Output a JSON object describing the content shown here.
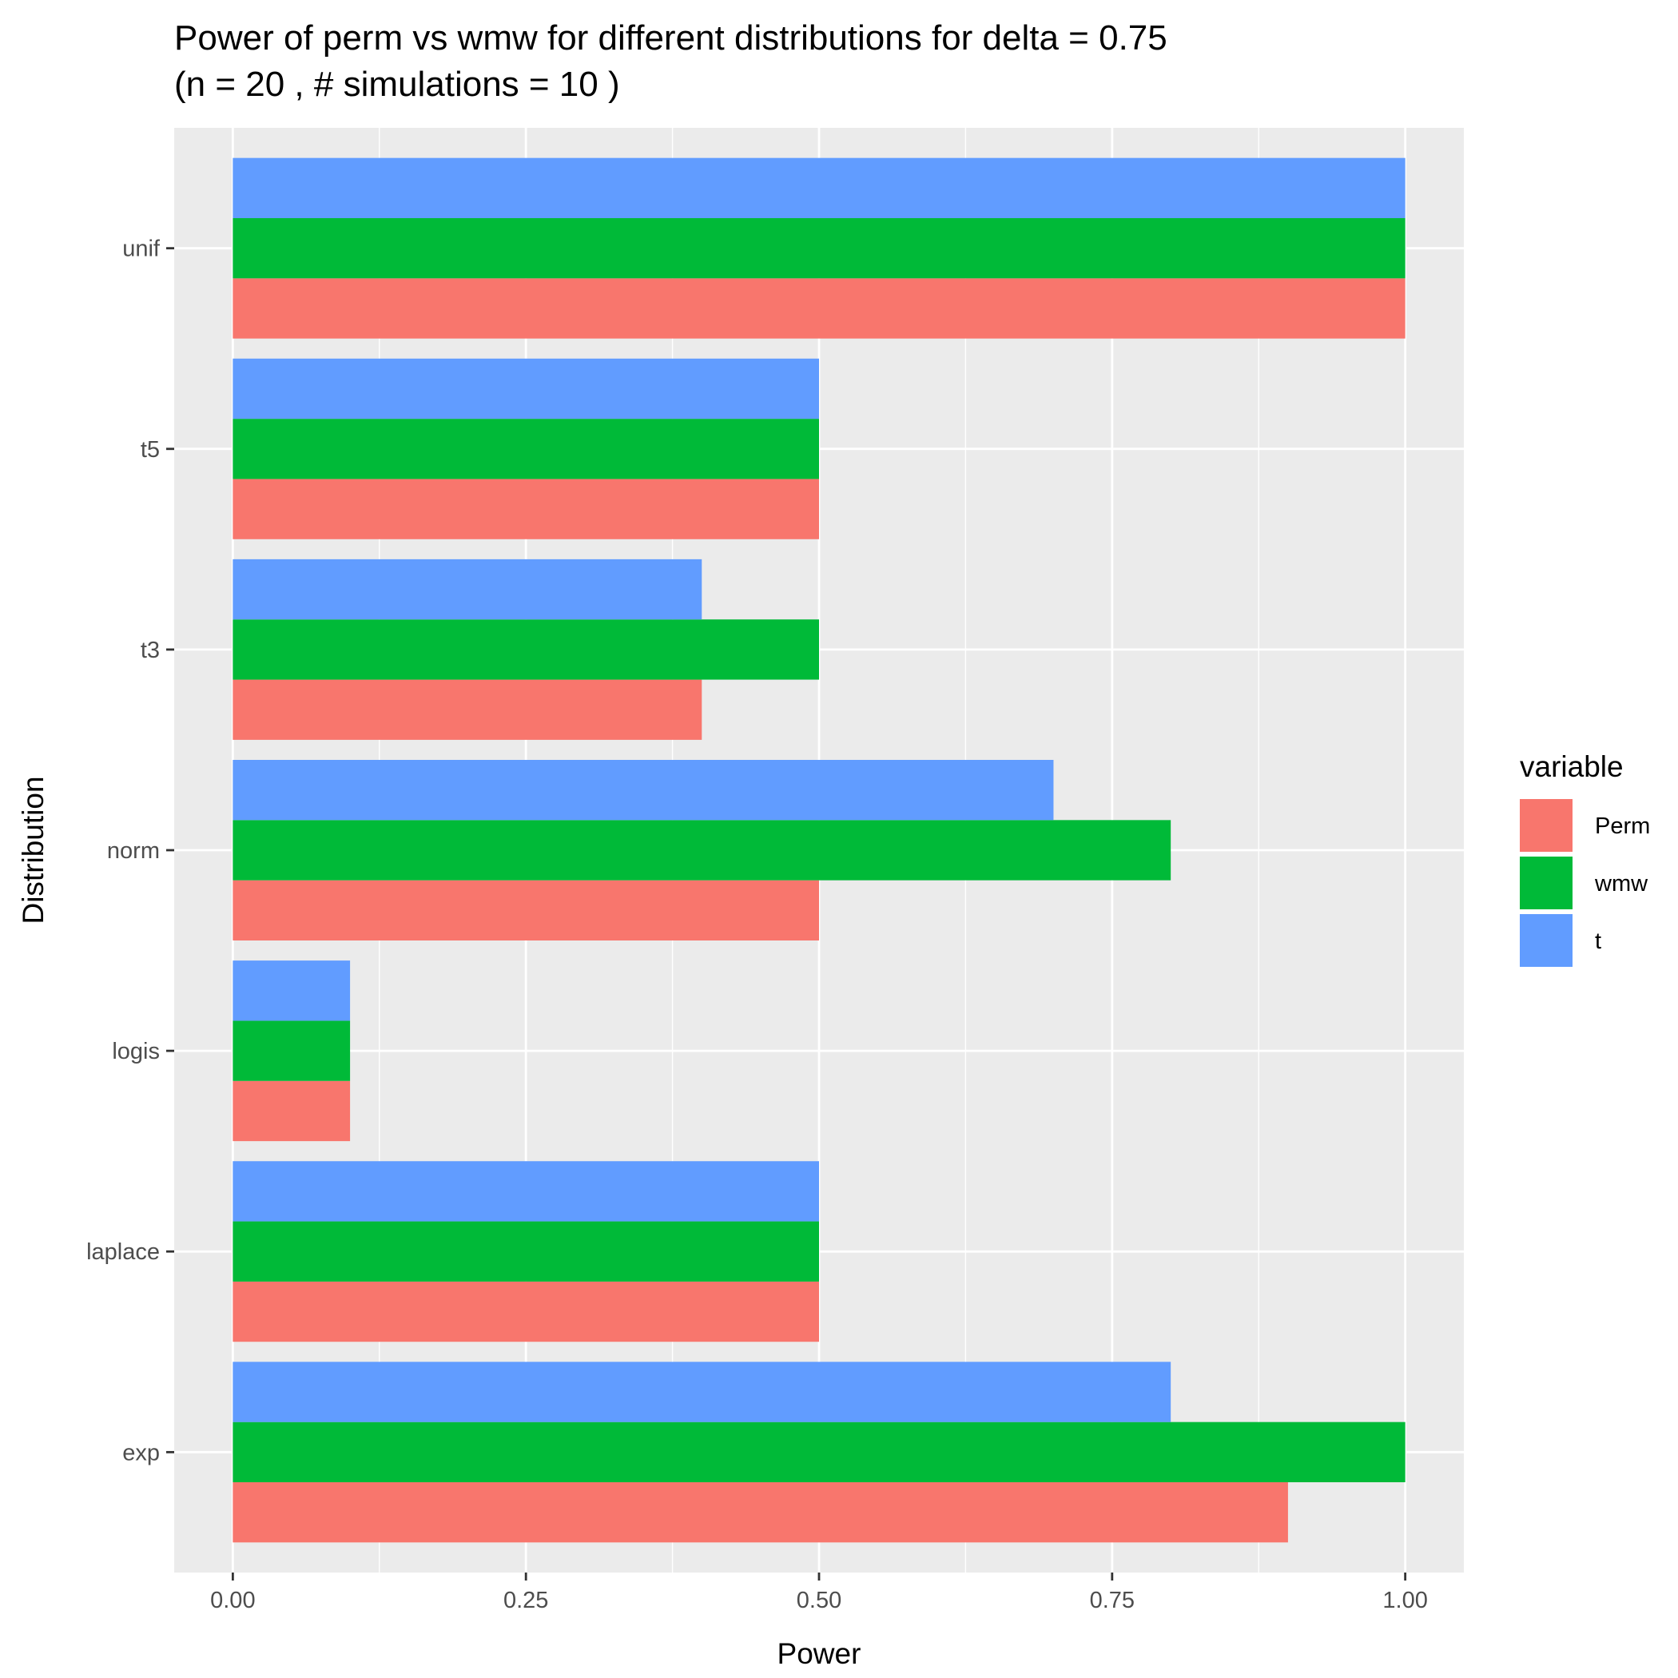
{
  "chart_data": {
    "type": "bar",
    "orientation": "horizontal",
    "title_line1": "Power of perm vs wmw for different distributions for delta =  0.75",
    "title_line2": "(n = 20 , # simulations = 10 )",
    "xlabel": "Power",
    "ylabel": "Distribution",
    "xlim": [
      0,
      1
    ],
    "x_ticks": [
      "0.00",
      "0.25",
      "0.50",
      "0.75",
      "1.00"
    ],
    "categories": [
      "unif",
      "t5",
      "t3",
      "norm",
      "logis",
      "laplace",
      "exp"
    ],
    "series": [
      {
        "name": "Perm",
        "color": "#F8766D",
        "values": [
          1.0,
          0.5,
          0.4,
          0.5,
          0.1,
          0.5,
          0.9
        ]
      },
      {
        "name": "wmw",
        "color": "#00BA38",
        "values": [
          1.0,
          0.5,
          0.5,
          0.8,
          0.1,
          0.5,
          1.0
        ]
      },
      {
        "name": "t",
        "color": "#619CFF",
        "values": [
          1.0,
          0.5,
          0.4,
          0.7,
          0.1,
          0.5,
          0.8
        ]
      }
    ],
    "legend_title": "variable",
    "legend_position": "right",
    "grid": true,
    "panel_background": "#EBEBEB",
    "grid_color": "#FFFFFF"
  }
}
